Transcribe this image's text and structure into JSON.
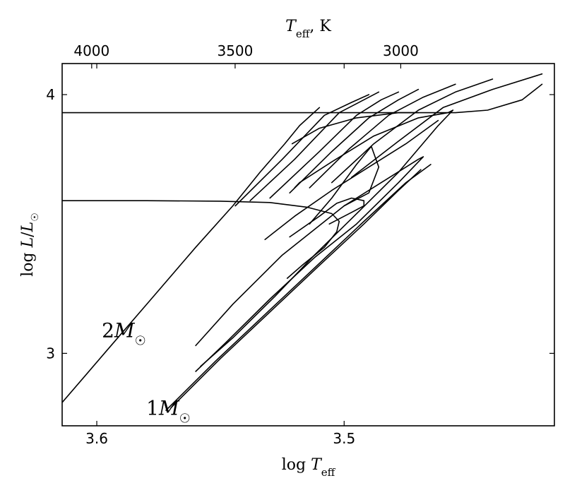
{
  "chart_data": {
    "type": "line",
    "title": "",
    "xlabel": "log T_eff",
    "ylabel": "log L/L_☉",
    "xlabel_top": "T_eff, K",
    "xlim": [
      3.614,
      3.415
    ],
    "ylim": [
      2.72,
      4.12
    ],
    "xticks": [
      3.6,
      3.5
    ],
    "xtick_labels": [
      "3.6",
      "3.5"
    ],
    "yticks": [
      3.0,
      4.0
    ],
    "ytick_labels": [
      "3",
      "4"
    ],
    "top_ticks": [
      {
        "value": 3.60206,
        "label": "4000"
      },
      {
        "value": 3.54407,
        "label": "3500"
      },
      {
        "value": 3.47712,
        "label": "3000"
      }
    ],
    "grid": false,
    "legend": "none",
    "colors": {
      "line": "#000000",
      "axes": "#000000",
      "background": "#ffffff"
    },
    "annotations": [
      {
        "text": "2M",
        "sub": "☉",
        "x": 3.578,
        "y": 3.09
      },
      {
        "text": "1M",
        "sub": "☉",
        "x": 3.56,
        "y": 2.79
      }
    ],
    "series": [
      {
        "x": [
          3.614,
          3.596,
          3.578,
          3.56,
          3.545,
          3.534,
          3.524,
          3.518,
          3.51
        ],
        "y": [
          2.81,
          3.01,
          3.21,
          3.41,
          3.57,
          3.7,
          3.81,
          3.88,
          3.95
        ]
      },
      {
        "x": [
          3.614,
          3.57,
          3.53,
          3.51,
          3.49,
          3.47
        ],
        "y": [
          3.93,
          3.93,
          3.93,
          3.93,
          3.93,
          3.93
        ]
      },
      {
        "x": [
          3.614,
          3.58,
          3.55,
          3.53,
          3.515,
          3.505,
          3.502,
          3.503,
          3.508,
          3.517,
          3.523
        ],
        "y": [
          3.59,
          3.59,
          3.588,
          3.583,
          3.565,
          3.54,
          3.51,
          3.47,
          3.41,
          3.34,
          3.29
        ]
      },
      {
        "x": [
          3.521,
          3.51,
          3.495,
          3.478,
          3.455,
          3.442,
          3.428,
          3.42
        ],
        "y": [
          3.81,
          3.87,
          3.91,
          3.93,
          3.93,
          3.94,
          3.98,
          4.04
        ]
      },
      {
        "x": [
          3.5,
          3.49,
          3.486,
          3.489,
          3.495,
          3.505,
          3.514
        ],
        "y": [
          3.57,
          3.62,
          3.72,
          3.8,
          3.73,
          3.6,
          3.5
        ]
      },
      {
        "x": [
          3.506,
          3.496,
          3.492,
          3.492,
          3.497,
          3.503,
          3.51,
          3.522
        ],
        "y": [
          3.5,
          3.55,
          3.57,
          3.59,
          3.6,
          3.58,
          3.53,
          3.45
        ]
      },
      {
        "x": [
          3.532,
          3.52,
          3.505,
          3.49,
          3.475,
          3.462
        ],
        "y": [
          3.44,
          3.53,
          3.63,
          3.72,
          3.81,
          3.9
        ]
      },
      {
        "x": [
          3.558,
          3.545,
          3.528,
          3.512,
          3.496,
          3.478,
          3.462,
          3.456,
          3.458,
          3.47,
          3.488,
          3.505,
          3.518,
          3.52
        ],
        "y": [
          2.95,
          3.06,
          3.22,
          3.38,
          3.53,
          3.7,
          3.88,
          3.94,
          3.93,
          3.91,
          3.84,
          3.74,
          3.66,
          3.64
        ]
      },
      {
        "x": [
          3.56,
          3.548,
          3.53,
          3.512,
          3.495,
          3.478,
          3.468,
          3.47,
          3.485,
          3.5,
          3.525,
          3.545,
          3.56
        ],
        "y": [
          2.93,
          3.04,
          3.21,
          3.37,
          3.5,
          3.66,
          3.76,
          3.75,
          3.66,
          3.57,
          3.38,
          3.19,
          3.03
        ]
      },
      {
        "x": [
          3.572,
          3.552,
          3.532,
          3.512,
          3.492,
          3.475,
          3.465
        ],
        "y": [
          2.78,
          2.97,
          3.15,
          3.33,
          3.51,
          3.66,
          3.73
        ]
      },
      {
        "x": [
          3.57,
          3.55,
          3.53,
          3.51,
          3.492,
          3.478,
          3.469
        ],
        "y": [
          2.79,
          2.98,
          3.16,
          3.34,
          3.5,
          3.63,
          3.71
        ]
      },
      {
        "x": [
          3.544,
          3.525,
          3.508,
          3.497,
          3.49
        ],
        "y": [
          3.57,
          3.75,
          3.92,
          3.97,
          4.0
        ]
      },
      {
        "x": [
          3.538,
          3.52,
          3.502,
          3.492,
          3.486
        ],
        "y": [
          3.59,
          3.75,
          3.93,
          3.98,
          4.01
        ]
      },
      {
        "x": [
          3.53,
          3.51,
          3.495,
          3.485,
          3.478
        ],
        "y": [
          3.6,
          3.78,
          3.92,
          3.98,
          4.01
        ]
      },
      {
        "x": [
          3.522,
          3.505,
          3.49,
          3.478,
          3.47
        ],
        "y": [
          3.62,
          3.78,
          3.91,
          3.98,
          4.02
        ]
      },
      {
        "x": [
          3.514,
          3.498,
          3.482,
          3.468,
          3.455
        ],
        "y": [
          3.64,
          3.79,
          3.92,
          3.99,
          4.04
        ]
      },
      {
        "x": [
          3.505,
          3.488,
          3.47,
          3.455,
          3.44
        ],
        "y": [
          3.66,
          3.81,
          3.94,
          4.01,
          4.06
        ]
      },
      {
        "x": [
          3.497,
          3.478,
          3.46,
          3.44,
          3.42
        ],
        "y": [
          3.68,
          3.82,
          3.95,
          4.02,
          4.08
        ]
      }
    ]
  }
}
